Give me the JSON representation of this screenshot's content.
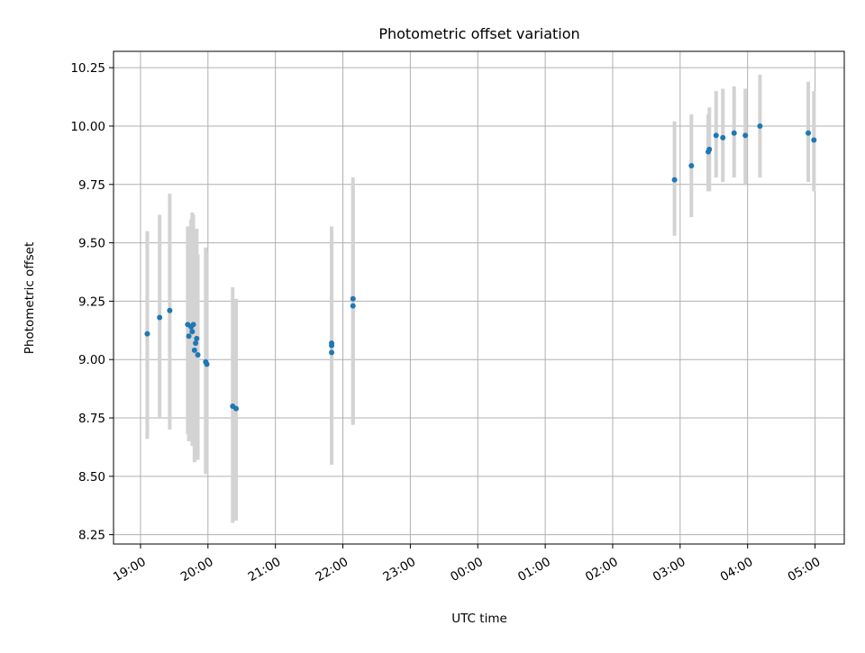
{
  "chart_data": {
    "type": "scatter",
    "title": "Photometric offset variation",
    "xlabel": "UTC time",
    "ylabel": "Photometric offset",
    "xlim": [
      "18:36",
      "05:26"
    ],
    "ylim": [
      8.21,
      10.32
    ],
    "x_ticks": [
      "19:00",
      "20:00",
      "21:00",
      "22:00",
      "23:00",
      "00:00",
      "01:00",
      "02:00",
      "03:00",
      "04:00",
      "05:00"
    ],
    "y_ticks": [
      "8.25",
      "8.50",
      "8.75",
      "9.00",
      "9.25",
      "9.50",
      "9.75",
      "10.00",
      "10.25"
    ],
    "grid": true,
    "colors": {
      "point": "#1f77b4",
      "error_bar": "#d3d3d3",
      "grid": "#b0b0b0"
    },
    "points": [
      {
        "time": "19:06",
        "y": 9.11,
        "err_low": 8.66,
        "err_high": 9.55
      },
      {
        "time": "19:17",
        "y": 9.18,
        "err_low": 8.75,
        "err_high": 9.62
      },
      {
        "time": "19:26",
        "y": 9.21,
        "err_low": 8.7,
        "err_high": 9.71
      },
      {
        "time": "19:42",
        "y": 9.15,
        "err_low": 8.68,
        "err_high": 9.57
      },
      {
        "time": "19:43",
        "y": 9.1,
        "err_low": 8.65,
        "err_high": 9.55
      },
      {
        "time": "19:45",
        "y": 9.14,
        "err_low": 8.68,
        "err_high": 9.6
      },
      {
        "time": "19:46",
        "y": 9.12,
        "err_low": 8.63,
        "err_high": 9.63
      },
      {
        "time": "19:47",
        "y": 9.15,
        "err_low": 8.68,
        "err_high": 9.62
      },
      {
        "time": "19:48",
        "y": 9.04,
        "err_low": 8.56,
        "err_high": 9.55
      },
      {
        "time": "19:49",
        "y": 9.07,
        "err_low": 8.6,
        "err_high": 9.5
      },
      {
        "time": "19:50",
        "y": 9.09,
        "err_low": 8.58,
        "err_high": 9.56
      },
      {
        "time": "19:51",
        "y": 9.02,
        "err_low": 8.57,
        "err_high": 9.45
      },
      {
        "time": "19:58",
        "y": 8.99,
        "err_low": 8.51,
        "err_high": 9.48
      },
      {
        "time": "19:59",
        "y": 8.98,
        "err_low": 8.51,
        "err_high": 9.46
      },
      {
        "time": "20:22",
        "y": 8.8,
        "err_low": 8.3,
        "err_high": 9.31
      },
      {
        "time": "20:25",
        "y": 8.79,
        "err_low": 8.31,
        "err_high": 9.26
      },
      {
        "time": "21:50",
        "y": 9.07,
        "err_low": 8.55,
        "err_high": 9.57
      },
      {
        "time": "21:50",
        "y": 9.06,
        "err_low": 8.56,
        "err_high": 9.55
      },
      {
        "time": "21:50",
        "y": 9.03,
        "err_low": 8.55,
        "err_high": 9.55
      },
      {
        "time": "22:09",
        "y": 9.26,
        "err_low": 8.73,
        "err_high": 9.78
      },
      {
        "time": "22:09",
        "y": 9.23,
        "err_low": 8.72,
        "err_high": 9.75
      },
      {
        "time": "02:55",
        "y": 9.77,
        "err_low": 9.53,
        "err_high": 10.02
      },
      {
        "time": "03:10",
        "y": 9.83,
        "err_low": 9.61,
        "err_high": 10.05
      },
      {
        "time": "03:25",
        "y": 9.89,
        "err_low": 9.72,
        "err_high": 10.05
      },
      {
        "time": "03:26",
        "y": 9.9,
        "err_low": 9.72,
        "err_high": 10.08
      },
      {
        "time": "03:32",
        "y": 9.96,
        "err_low": 9.78,
        "err_high": 10.15
      },
      {
        "time": "03:38",
        "y": 9.95,
        "err_low": 9.76,
        "err_high": 10.16
      },
      {
        "time": "03:48",
        "y": 9.97,
        "err_low": 9.78,
        "err_high": 10.17
      },
      {
        "time": "03:58",
        "y": 9.96,
        "err_low": 9.75,
        "err_high": 10.16
      },
      {
        "time": "04:11",
        "y": 10.0,
        "err_low": 9.78,
        "err_high": 10.22
      },
      {
        "time": "04:54",
        "y": 9.97,
        "err_low": 9.76,
        "err_high": 10.19
      },
      {
        "time": "04:59",
        "y": 9.94,
        "err_low": 9.72,
        "err_high": 10.15
      }
    ]
  }
}
